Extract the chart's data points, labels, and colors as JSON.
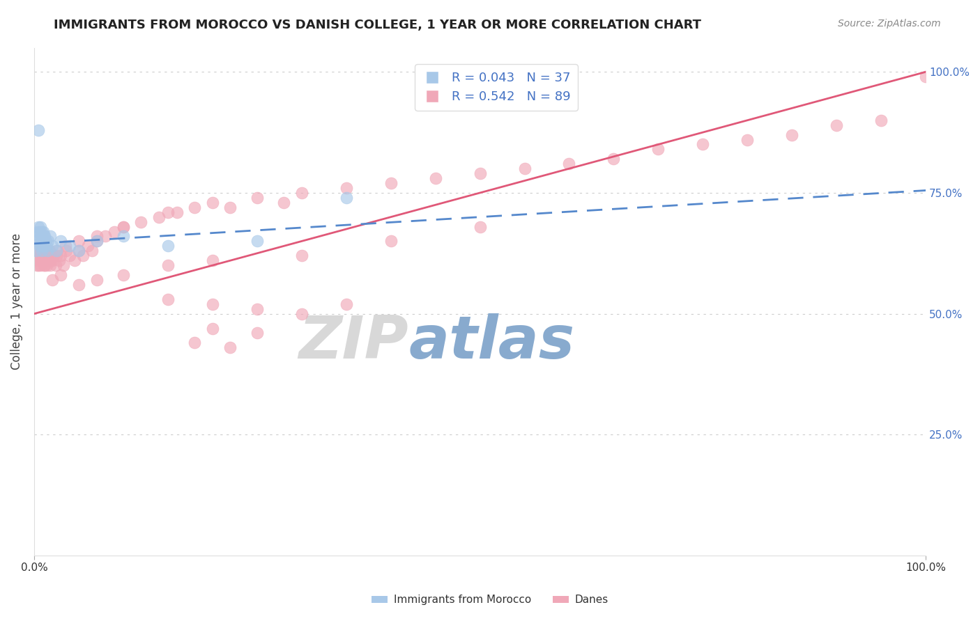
{
  "title": "IMMIGRANTS FROM MOROCCO VS DANISH COLLEGE, 1 YEAR OR MORE CORRELATION CHART",
  "source_text": "Source: ZipAtlas.com",
  "ylabel": "College, 1 year or more",
  "legend_entry1": "R = 0.043   N = 37",
  "legend_entry2": "R = 0.542   N = 89",
  "legend_label1": "Immigrants from Morocco",
  "legend_label2": "Danes",
  "blue_color": "#A8C8E8",
  "pink_color": "#F0A8B8",
  "blue_line_color": "#5588CC",
  "pink_line_color": "#E05878",
  "r_n_color": "#4472C4",
  "watermark_color": "#D8D8D8",
  "watermark_blue": "#88AACE",
  "background_color": "#FFFFFF",
  "grid_color": "#C8C8C8",
  "morocco_x": [
    0.002,
    0.003,
    0.004,
    0.005,
    0.005,
    0.006,
    0.006,
    0.007,
    0.007,
    0.008,
    0.008,
    0.009,
    0.009,
    0.009,
    0.01,
    0.01,
    0.01,
    0.011,
    0.011,
    0.012,
    0.012,
    0.013,
    0.014,
    0.015,
    0.016,
    0.018,
    0.02,
    0.025,
    0.03,
    0.04,
    0.05,
    0.07,
    0.1,
    0.15,
    0.25,
    0.35,
    0.005
  ],
  "morocco_y": [
    0.63,
    0.65,
    0.67,
    0.66,
    0.68,
    0.64,
    0.67,
    0.65,
    0.68,
    0.66,
    0.64,
    0.65,
    0.67,
    0.63,
    0.65,
    0.67,
    0.64,
    0.66,
    0.65,
    0.64,
    0.66,
    0.65,
    0.64,
    0.63,
    0.65,
    0.66,
    0.64,
    0.63,
    0.65,
    0.64,
    0.63,
    0.65,
    0.66,
    0.64,
    0.65,
    0.74,
    0.88
  ],
  "danes_x": [
    0.002,
    0.003,
    0.004,
    0.005,
    0.006,
    0.007,
    0.008,
    0.009,
    0.01,
    0.011,
    0.012,
    0.013,
    0.014,
    0.015,
    0.016,
    0.017,
    0.018,
    0.019,
    0.02,
    0.022,
    0.024,
    0.026,
    0.028,
    0.03,
    0.033,
    0.036,
    0.04,
    0.045,
    0.05,
    0.055,
    0.06,
    0.065,
    0.07,
    0.08,
    0.09,
    0.1,
    0.12,
    0.14,
    0.16,
    0.18,
    0.2,
    0.22,
    0.25,
    0.28,
    0.3,
    0.35,
    0.4,
    0.45,
    0.5,
    0.55,
    0.6,
    0.65,
    0.7,
    0.75,
    0.8,
    0.85,
    0.9,
    0.95,
    1.0,
    0.005,
    0.008,
    0.012,
    0.018,
    0.025,
    0.035,
    0.05,
    0.07,
    0.1,
    0.15,
    0.02,
    0.03,
    0.05,
    0.07,
    0.1,
    0.15,
    0.2,
    0.3,
    0.4,
    0.5,
    0.2,
    0.3,
    0.15,
    0.25,
    0.35,
    0.2,
    0.25,
    0.18,
    0.22
  ],
  "danes_y": [
    0.62,
    0.6,
    0.63,
    0.61,
    0.62,
    0.6,
    0.63,
    0.61,
    0.62,
    0.6,
    0.61,
    0.63,
    0.6,
    0.62,
    0.61,
    0.63,
    0.6,
    0.62,
    0.61,
    0.62,
    0.6,
    0.63,
    0.61,
    0.62,
    0.6,
    0.63,
    0.62,
    0.61,
    0.63,
    0.62,
    0.64,
    0.63,
    0.65,
    0.66,
    0.67,
    0.68,
    0.69,
    0.7,
    0.71,
    0.72,
    0.73,
    0.72,
    0.74,
    0.73,
    0.75,
    0.76,
    0.77,
    0.78,
    0.79,
    0.8,
    0.81,
    0.82,
    0.84,
    0.85,
    0.86,
    0.87,
    0.89,
    0.9,
    0.99,
    0.6,
    0.62,
    0.6,
    0.61,
    0.62,
    0.64,
    0.65,
    0.66,
    0.68,
    0.71,
    0.57,
    0.58,
    0.56,
    0.57,
    0.58,
    0.6,
    0.61,
    0.62,
    0.65,
    0.68,
    0.52,
    0.5,
    0.53,
    0.51,
    0.52,
    0.47,
    0.46,
    0.44,
    0.43
  ],
  "xlim": [
    0.0,
    1.0
  ],
  "ylim": [
    0.0,
    1.05
  ],
  "blue_line_x0": 0.0,
  "blue_line_y0": 0.645,
  "blue_line_x1": 1.0,
  "blue_line_y1": 0.755,
  "pink_line_x0": 0.0,
  "pink_line_y0": 0.5,
  "pink_line_x1": 1.0,
  "pink_line_y1": 1.0
}
